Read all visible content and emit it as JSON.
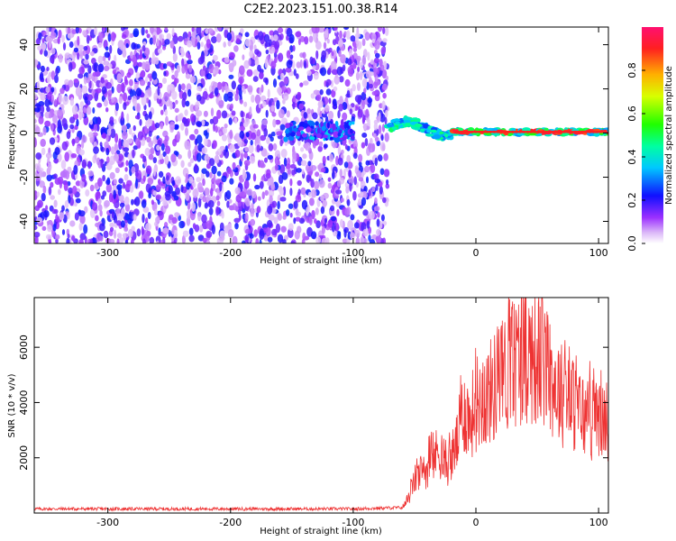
{
  "title": "C2E2.2023.151.00.38.R14",
  "colors": {
    "snr_line": "#ee3333",
    "axes": "#000000"
  },
  "chart_data": [
    {
      "type": "heatmap",
      "xlabel": "Height of straight line (km)",
      "ylabel": "Frequency (Hz)",
      "xlim": [
        -360,
        108
      ],
      "ylim": [
        -50,
        48
      ],
      "xticks": [
        -300,
        -200,
        -100,
        0,
        100
      ],
      "yticks": [
        -40,
        -20,
        0,
        20,
        40
      ],
      "colorbar": {
        "label": "Normalized spectral amplitude",
        "range": [
          0,
          1
        ],
        "ticks": [
          "0.0",
          "0.2",
          "0.4",
          "0.6",
          "0.8"
        ],
        "colormap": "gist_rainbow_r"
      },
      "regions": [
        {
          "name": "noise",
          "x": [
            -360,
            -72
          ],
          "y": [
            -50,
            48
          ],
          "amplitude": 0.1
        },
        {
          "name": "weak_echo",
          "x": [
            -155,
            -100
          ],
          "y": [
            -4,
            4
          ],
          "amplitude": 0.25
        },
        {
          "name": "strong_echo",
          "x": [
            -72,
            108
          ],
          "y": [
            -4,
            8
          ],
          "amplitude": 0.7
        }
      ]
    },
    {
      "type": "line",
      "xlabel": "Height of straight line (km)",
      "ylabel": "SNR (10 * v/v)",
      "xlim": [
        -360,
        108
      ],
      "ylim": [
        0,
        7800
      ],
      "xticks": [
        -300,
        -200,
        -100,
        0,
        100
      ],
      "yticks": [
        2000,
        4000,
        6000
      ],
      "series": [
        {
          "x": [
            -360,
            -300,
            -200,
            -100,
            -60,
            -55,
            -50,
            -40,
            -30,
            -25,
            -20,
            -15,
            -10,
            -5,
            0,
            10,
            20,
            30,
            40,
            50,
            60,
            70,
            80,
            90,
            100,
            108
          ],
          "y": [
            150,
            150,
            150,
            150,
            200,
            500,
            1200,
            1600,
            2300,
            1600,
            2000,
            2600,
            3800,
            3300,
            4000,
            4300,
            4800,
            5400,
            5800,
            5600,
            5000,
            4300,
            3900,
            3400,
            3300,
            3400
          ]
        }
      ]
    }
  ]
}
